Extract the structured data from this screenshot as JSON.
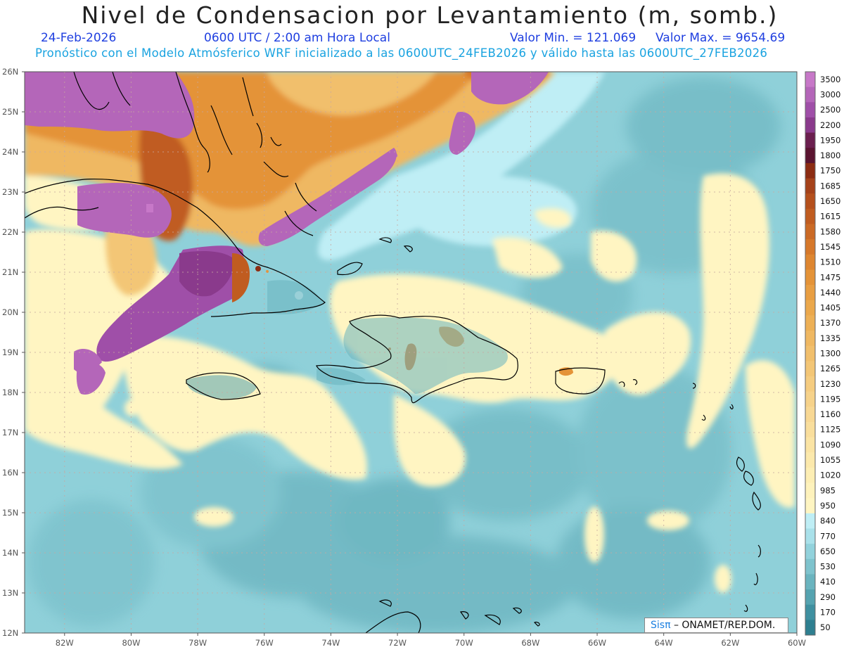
{
  "header": {
    "title": "Nivel de Condensacion por Levantamiento (m, somb.)",
    "date": "24-Feb-2026",
    "time": "0600 UTC / 2:00 am Hora Local",
    "min_label": "Valor Min. = 121.069",
    "max_label": "Valor Max. = 9654.69",
    "forecast_note": "Pronóstico con el Modelo Atmósferico WRF inicializado a las 0600UTC_24FEB2026 y válido hasta las  0600UTC_27FEB2026"
  },
  "map": {
    "lat_labels": [
      "26N",
      "25N",
      "24N",
      "23N",
      "22N",
      "21N",
      "20N",
      "19N",
      "18N",
      "17N",
      "16N",
      "15N",
      "14N",
      "13N",
      "12N"
    ],
    "lon_labels": [
      "82W",
      "80W",
      "78W",
      "76W",
      "74W",
      "72W",
      "70W",
      "68W",
      "66W",
      "64W",
      "62W",
      "60W"
    ],
    "lat_range": [
      12,
      26
    ],
    "lon_range": [
      -83.2,
      -60
    ]
  },
  "colorbar": {
    "labels": [
      "3500",
      "3000",
      "2500",
      "2200",
      "1950",
      "1800",
      "1750",
      "1685",
      "1650",
      "1615",
      "1580",
      "1545",
      "1510",
      "1475",
      "1440",
      "1405",
      "1370",
      "1335",
      "1300",
      "1265",
      "1230",
      "1195",
      "1160",
      "1125",
      "1090",
      "1055",
      "1020",
      "985",
      "950",
      "840",
      "770",
      "650",
      "530",
      "410",
      "290",
      "170",
      "50"
    ],
    "colors": [
      "#c778c8",
      "#b466b9",
      "#9f4fa8",
      "#8a3a8c",
      "#6b1f4f",
      "#5a1430",
      "#8c2c12",
      "#a5421a",
      "#b5501c",
      "#c05c20",
      "#cb6a25",
      "#d6782a",
      "#de8630",
      "#e49338",
      "#e89e42",
      "#eba84c",
      "#edb056",
      "#efb862",
      "#f1bf6c",
      "#f3c676",
      "#f5cc80",
      "#f6d28a",
      "#f8d894",
      "#f9de9c",
      "#fbe4a4",
      "#fce9ac",
      "#fdeeb4",
      "#fef2bc",
      "#fff5c2",
      "#bfeef5",
      "#a9e1ea",
      "#92d2dc",
      "#7ec3cd",
      "#6ab4bf",
      "#55a3b0",
      "#3f90a0",
      "#2e7f90"
    ]
  },
  "credit": {
    "brand": "Sisπ",
    "rest": "– ONAMET/REP.DOM."
  },
  "colors": {
    "background_sea": "#8fd0d9",
    "dry_yellow": "#fff5c2",
    "high_orange": "#e9a24a",
    "very_high_purple": "#b466b9"
  }
}
